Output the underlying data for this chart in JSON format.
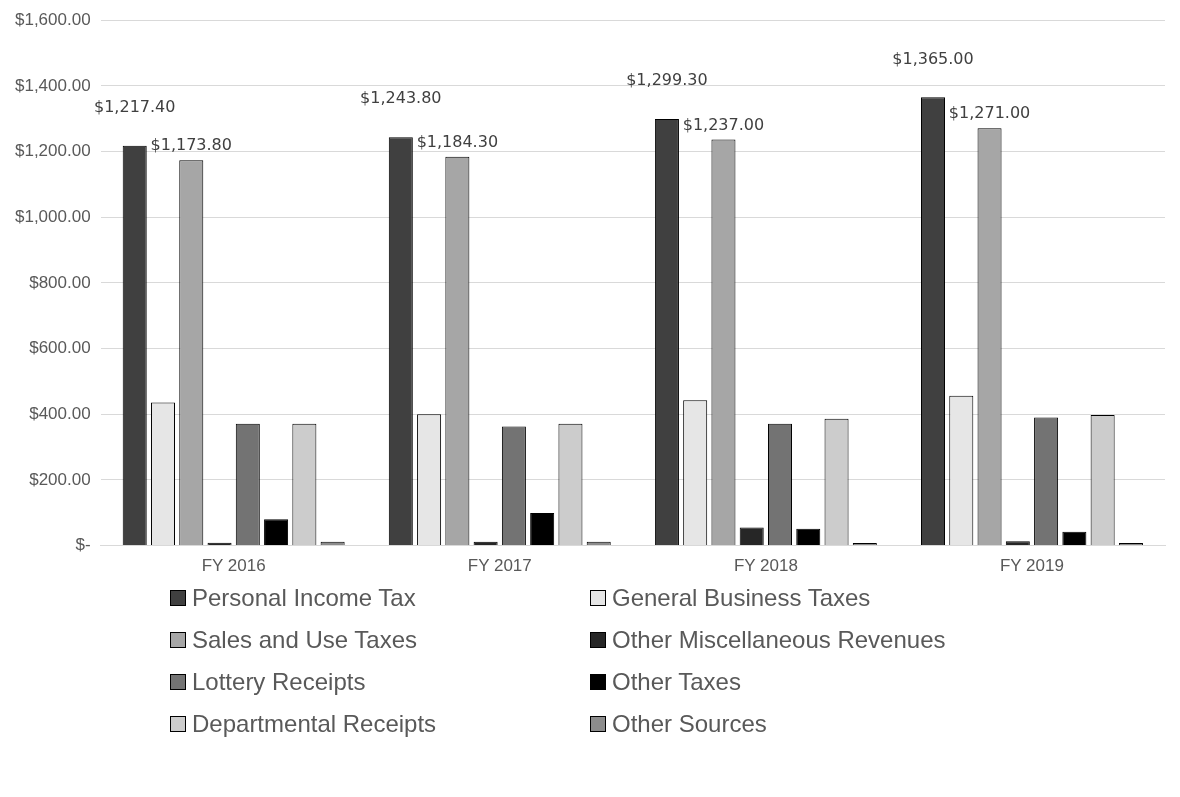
{
  "chart_data": {
    "type": "bar",
    "categories": [
      "FY 2016",
      "FY 2017",
      "FY 2018",
      "FY 2019"
    ],
    "series": [
      {
        "name": "Personal Income Tax",
        "color": "#404040",
        "values": [
          1217.4,
          1243.8,
          1299.3,
          1365.0
        ],
        "value_labels": [
          "$1,217.40",
          "$1,243.80",
          "$1,299.30",
          "$1,365.00"
        ]
      },
      {
        "name": "General Business Taxes",
        "color": "#e6e6e6",
        "values": [
          436,
          400,
          443,
          456
        ]
      },
      {
        "name": "Sales and Use Taxes",
        "color": "#a6a6a6",
        "values": [
          1173.8,
          1184.3,
          1237.0,
          1271.0
        ],
        "value_labels": [
          "$1,173.80",
          "$1,184.30",
          "$1,237.00",
          "$1,271.00"
        ]
      },
      {
        "name": "Other Miscellaneous Revenues",
        "color": "#262626",
        "values": [
          9,
          12,
          55,
          13
        ]
      },
      {
        "name": "Lottery Receipts",
        "color": "#737373",
        "values": [
          371,
          363,
          371,
          390
        ]
      },
      {
        "name": "Other Taxes",
        "color": "#000000",
        "values": [
          80,
          99,
          51,
          42
        ]
      },
      {
        "name": "Departmental Receipts",
        "color": "#cccccc",
        "values": [
          371,
          371,
          386,
          398
        ]
      },
      {
        "name": "Other Sources",
        "color": "#8c8c8c",
        "values": [
          12,
          12,
          8,
          8
        ]
      }
    ],
    "ylim": [
      0,
      1600
    ],
    "yticks": [
      {
        "value": 0,
        "label": "$-"
      },
      {
        "value": 200,
        "label": "$200.00"
      },
      {
        "value": 400,
        "label": "$400.00"
      },
      {
        "value": 600,
        "label": "$600.00"
      },
      {
        "value": 800,
        "label": "$800.00"
      },
      {
        "value": 1000,
        "label": "$1,000.00"
      },
      {
        "value": 1200,
        "label": "$1,200.00"
      },
      {
        "value": 1400,
        "label": "$1,400.00"
      },
      {
        "value": 1600,
        "label": "$1,600.00"
      }
    ],
    "grid": "y",
    "legend": "bottom"
  }
}
